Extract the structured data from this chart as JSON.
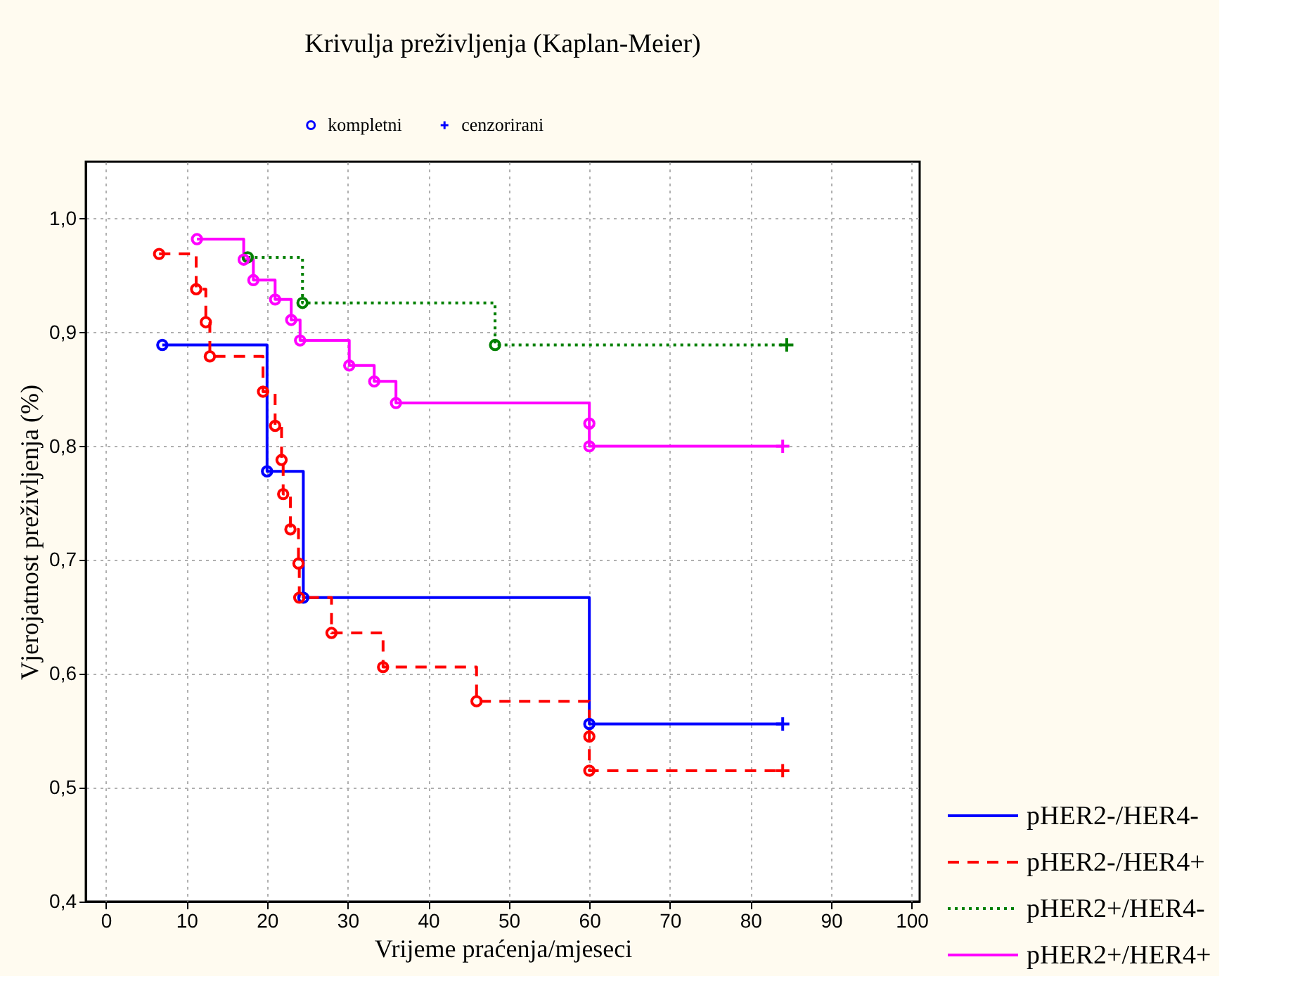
{
  "chart_data": {
    "type": "step",
    "title": "Krivulja preživljenja (Kaplan-Meier)",
    "xlabel": "Vrijeme praćenja/mjeseci",
    "ylabel": "Vjerojatnost preživljenja (%)",
    "xlim": [
      -2.5,
      101
    ],
    "xticks": [
      0,
      10,
      20,
      30,
      40,
      50,
      60,
      70,
      80,
      90,
      100
    ],
    "ylim": [
      0.4,
      1.05
    ],
    "yticks": [
      {
        "value": 0.4,
        "label": "0,4"
      },
      {
        "value": 0.5,
        "label": "0,5"
      },
      {
        "value": 0.6,
        "label": "0,6"
      },
      {
        "value": 0.7,
        "label": "0,7"
      },
      {
        "value": 0.8,
        "label": "0,8"
      },
      {
        "value": 0.9,
        "label": "0,9"
      },
      {
        "value": 1.0,
        "label": "1,0"
      }
    ],
    "grid": true,
    "legend": "bottom right",
    "series": [
      {
        "name": "pHER2-/HER4-",
        "color": "#0000ff",
        "line_style": "solid",
        "x": [
          7,
          20,
          24.5,
          60,
          84
        ],
        "values": [
          0.889,
          0.778,
          0.667,
          0.556,
          0.556
        ]
      },
      {
        "name": "pHER2-/HER4+",
        "color": "#ff0000",
        "line_style": "dashed",
        "x": [
          6.6,
          11.2,
          12.4,
          12.9,
          19.5,
          21,
          21.8,
          22,
          22.9,
          23.9,
          24,
          28,
          34.4,
          46,
          60,
          60,
          84
        ],
        "values": [
          0.969,
          0.938,
          0.909,
          0.879,
          0.848,
          0.818,
          0.788,
          0.758,
          0.727,
          0.697,
          0.667,
          0.636,
          0.606,
          0.576,
          0.545,
          0.515,
          0.515
        ]
      },
      {
        "name": "pHER2+/HER4-",
        "color": "#008000",
        "line_style": "dotted",
        "x": [
          17.6,
          24.4,
          48.3,
          84.5
        ],
        "values": [
          0.966,
          0.926,
          0.889,
          0.889
        ]
      },
      {
        "name": "pHER2+/HER4+",
        "color": "#ff00ff",
        "line_style": "solid",
        "x": [
          11.3,
          17.1,
          18.3,
          21,
          23,
          24.1,
          30.2,
          33.3,
          36,
          60,
          60,
          84
        ],
        "values": [
          0.982,
          0.964,
          0.946,
          0.929,
          0.911,
          0.893,
          0.871,
          0.857,
          0.838,
          0.82,
          0.8,
          0.8
        ]
      },
      {
        "name": "kompletni",
        "type": "scatter",
        "marker": "circle",
        "color": "#0000ff",
        "x": [
          7,
          20,
          24.5,
          60,
          6.6,
          11.2,
          12.4,
          12.9,
          19.5,
          21,
          21.8,
          22,
          22.9,
          23.9,
          24,
          28,
          34.4,
          46,
          60,
          60,
          17.6,
          24.4,
          48.3,
          11.3,
          17.1,
          18.3,
          21,
          23,
          24.1,
          30.2,
          33.3,
          36,
          60,
          60
        ],
        "values": [
          0.889,
          0.778,
          0.667,
          0.556,
          0.969,
          0.938,
          0.909,
          0.879,
          0.848,
          0.818,
          0.788,
          0.758,
          0.727,
          0.697,
          0.667,
          0.636,
          0.606,
          0.576,
          0.545,
          0.515,
          0.966,
          0.926,
          0.889,
          0.982,
          0.964,
          0.946,
          0.929,
          0.911,
          0.893,
          0.871,
          0.857,
          0.838,
          0.82,
          0.8
        ],
        "colors": [
          "#0000ff",
          "#0000ff",
          "#0000ff",
          "#0000ff",
          "#ff0000",
          "#ff0000",
          "#ff0000",
          "#ff0000",
          "#ff0000",
          "#ff0000",
          "#ff0000",
          "#ff0000",
          "#ff0000",
          "#ff0000",
          "#ff0000",
          "#ff0000",
          "#ff0000",
          "#ff0000",
          "#ff0000",
          "#ff0000",
          "#008000",
          "#008000",
          "#008000",
          "#ff00ff",
          "#ff00ff",
          "#ff00ff",
          "#ff00ff",
          "#ff00ff",
          "#ff00ff",
          "#ff00ff",
          "#ff00ff",
          "#ff00ff",
          "#ff00ff",
          "#ff00ff"
        ]
      },
      {
        "name": "cenzorirani",
        "type": "scatter",
        "marker": "cross",
        "color": "#0000ff",
        "x": [
          84,
          84,
          84.5,
          84
        ],
        "values": [
          0.556,
          0.515,
          0.889,
          0.8
        ],
        "colors": [
          "#0000ff",
          "#ff0000",
          "#008000",
          "#ff00ff"
        ]
      }
    ]
  }
}
